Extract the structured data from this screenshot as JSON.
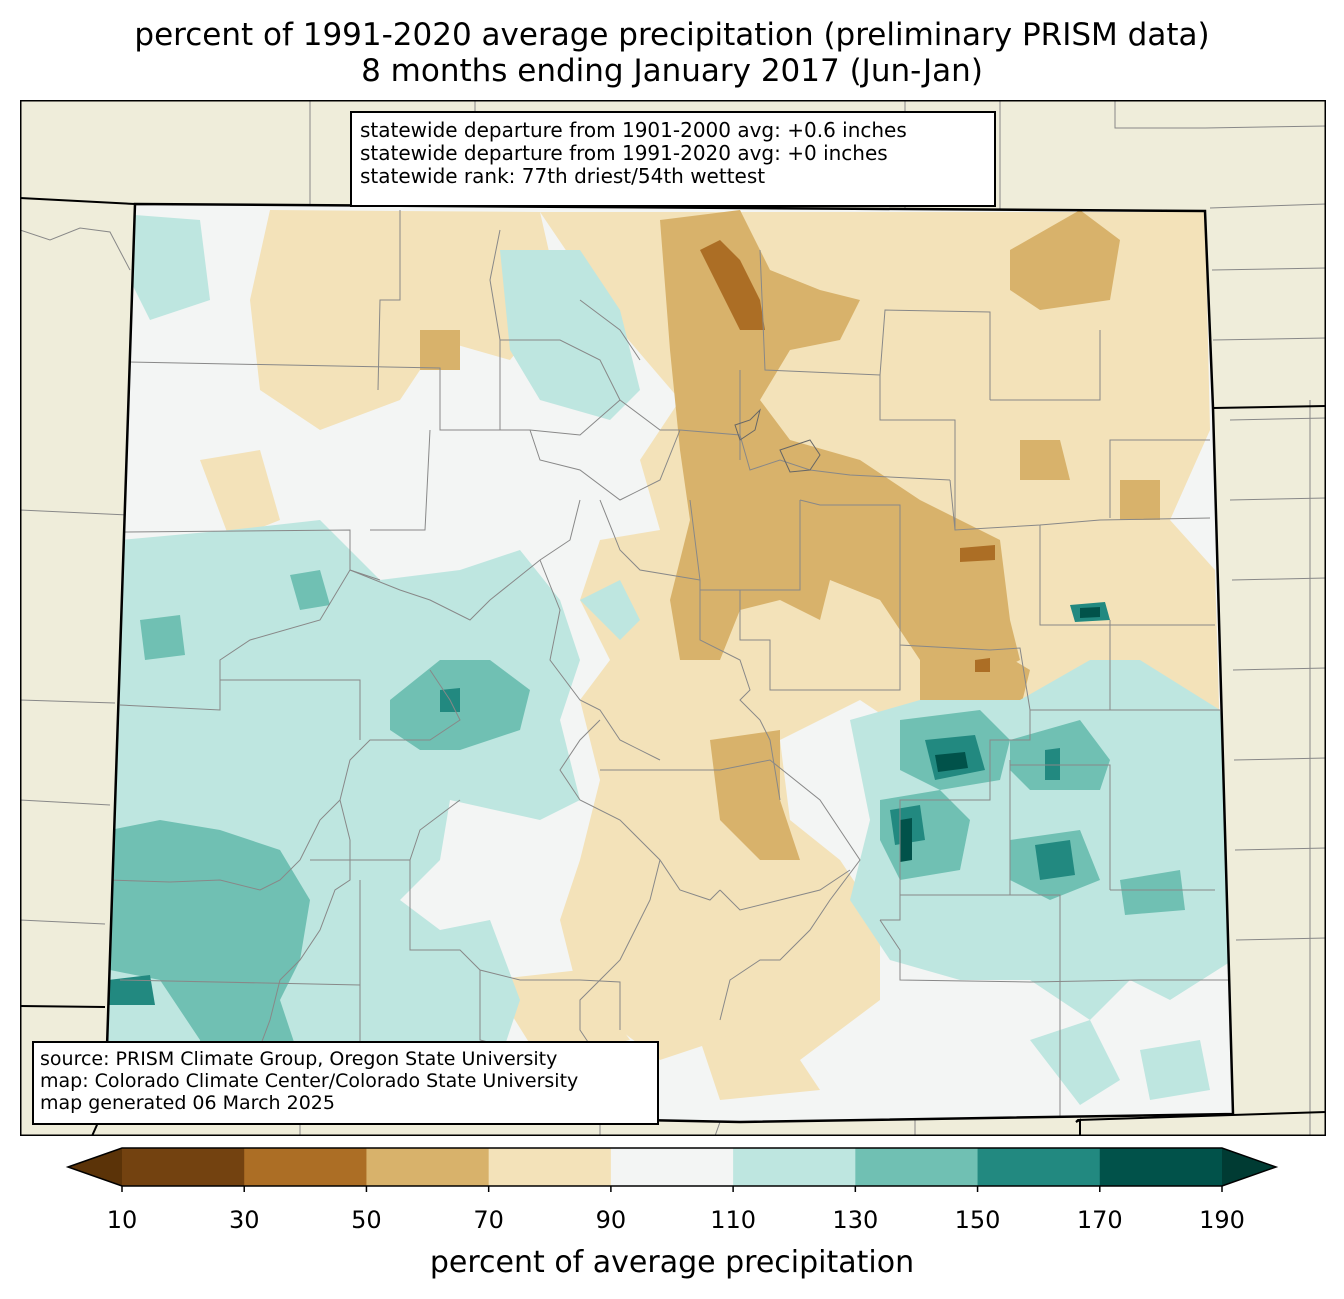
{
  "title": {
    "line1": "percent of 1991-2020 average precipitation (preliminary PRISM data)",
    "line2": "8 months ending January 2017 (Jun-Jan)"
  },
  "stats": {
    "departure_1901_2000": "statewide departure from 1901-2000 avg: +0.6 inches",
    "departure_1991_2020": "statewide departure from 1991-2020 avg: +0 inches",
    "rank": "statewide rank: 77th driest/54th wettest"
  },
  "source": {
    "line1": "source: PRISM Climate Group, Oregon State University",
    "line2": "map: Colorado Climate Center/Colorado State University",
    "line3": "map generated 06 March 2025"
  },
  "colorbar": {
    "label": "percent of average precipitation",
    "ticks": [
      "10",
      "30",
      "50",
      "70",
      "90",
      "110",
      "130",
      "150",
      "170",
      "190"
    ],
    "colors": [
      "#734210",
      "#ac6e25",
      "#d8b26b",
      "#f3e2b9",
      "#f3f5f4",
      "#bee6e0",
      "#70c0b3",
      "#228980",
      "#01524a"
    ],
    "under_color": "#5b3308",
    "over_color": "#003b33"
  },
  "colors": {
    "land": "#efedda",
    "water_bg": "#f3f5f4"
  }
}
